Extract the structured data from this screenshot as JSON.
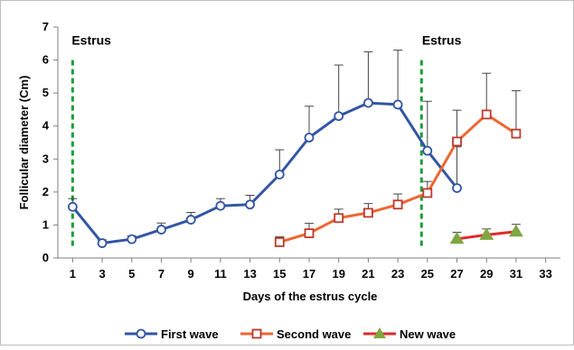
{
  "chart_data": {
    "type": "line",
    "xlabel": "Days of the estrus cycle",
    "ylabel": "Follicular diameter (Cm)",
    "x_ticks": [
      1,
      3,
      5,
      7,
      9,
      11,
      13,
      15,
      17,
      19,
      21,
      23,
      25,
      27,
      29,
      31,
      33
    ],
    "xlim": [
      0,
      34
    ],
    "ylim": [
      0,
      7
    ],
    "y_ticks": [
      0,
      1,
      2,
      3,
      4,
      5,
      6,
      7
    ],
    "grid": false,
    "legend_position": "bottom",
    "annotations": [
      {
        "text": "Estrus",
        "x": 1,
        "line_x": 1
      },
      {
        "text": "Estrus",
        "x": 25,
        "line_x": 24.6
      }
    ],
    "annotation_line_color": "#1a9e3a",
    "series": [
      {
        "name": "First wave",
        "color": "#3355a4",
        "marker": "circle",
        "x": [
          1,
          3,
          5,
          7,
          9,
          11,
          13,
          15,
          17,
          19,
          21,
          23,
          25,
          27
        ],
        "y": [
          1.55,
          0.45,
          0.57,
          0.86,
          1.16,
          1.58,
          1.62,
          2.53,
          3.65,
          4.3,
          4.7,
          4.65,
          3.25,
          2.12
        ],
        "error": [
          0.25,
          0.1,
          0.1,
          0.2,
          0.22,
          0.22,
          0.28,
          0.75,
          0.95,
          1.55,
          1.55,
          1.65,
          1.5,
          1.25
        ]
      },
      {
        "name": "Second wave",
        "color": "#ee6633",
        "marker": "square",
        "x": [
          15,
          17,
          19,
          21,
          23,
          25,
          27,
          29,
          31
        ],
        "y": [
          0.48,
          0.75,
          1.21,
          1.37,
          1.62,
          1.97,
          3.53,
          4.35,
          3.77
        ],
        "error": [
          0.16,
          0.3,
          0.27,
          0.28,
          0.32,
          0.35,
          0.95,
          1.25,
          1.3
        ]
      },
      {
        "name": "New wave",
        "color": "#e02a2a",
        "marker": "triangle",
        "marker_color": "#7fa640",
        "x": [
          27,
          29,
          31
        ],
        "y": [
          0.58,
          0.7,
          0.8
        ],
        "error": [
          0.2,
          0.18,
          0.22
        ]
      }
    ]
  }
}
